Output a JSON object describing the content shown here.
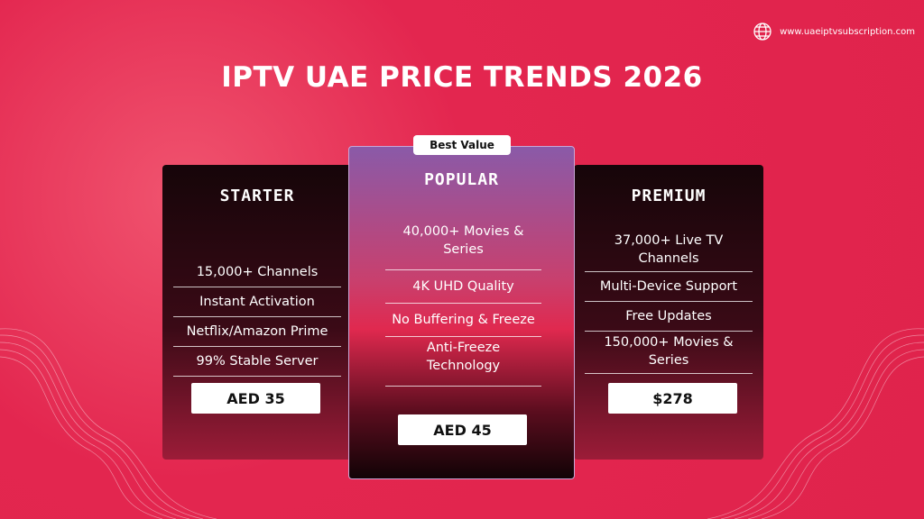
{
  "header": {
    "website": "www.uaeiptvsubscription.com",
    "title": "IPTV UAE PRICE TRENDS 2026"
  },
  "plans": [
    {
      "name": "STARTER",
      "features": [
        "15,000+ Channels",
        "Instant Activation",
        "Netflix/Amazon Prime",
        "99% Stable Server"
      ],
      "price": "AED 35"
    },
    {
      "badge": "Best Value",
      "name": "POPULAR",
      "features": [
        "40,000+ Movies & Series",
        "4K UHD Quality",
        "No Buffering & Freeze",
        "Anti-Freeze Technology"
      ],
      "price": "AED 45"
    },
    {
      "name": "PREMIUM",
      "features": [
        "37,000+ Live TV Channels",
        "Multi-Device Support",
        "Free Updates",
        "150,000+ Movies & Series"
      ],
      "price": "$278"
    }
  ]
}
